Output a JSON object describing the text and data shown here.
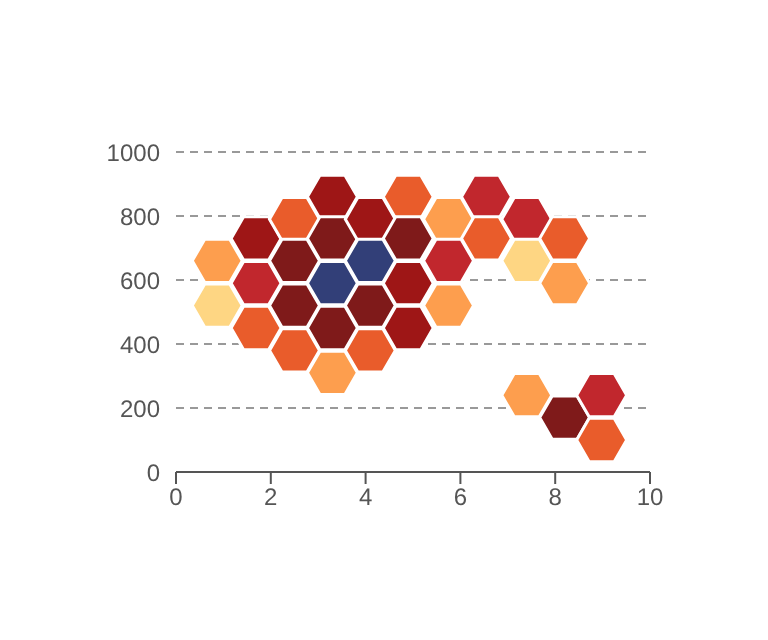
{
  "chart_data": {
    "type": "scatter",
    "x": [
      0.87,
      0.87,
      1.69,
      1.69,
      1.69,
      2.5,
      2.5,
      2.5,
      2.5,
      3.3,
      3.3,
      3.3,
      3.3,
      3.3,
      4.1,
      4.1,
      4.1,
      4.1,
      4.9,
      4.9,
      4.9,
      4.9,
      5.75,
      5.75,
      5.75,
      6.55,
      6.55,
      7.4,
      7.4,
      7.4,
      8.2,
      8.2,
      8.2,
      8.98,
      8.98
    ],
    "values": [
      660,
      520,
      730,
      590,
      450,
      790,
      660,
      520,
      380,
      860,
      730,
      590,
      450,
      310,
      790,
      660,
      520,
      380,
      860,
      730,
      590,
      450,
      790,
      660,
      520,
      860,
      730,
      790,
      660,
      240,
      730,
      590,
      170,
      240,
      100
    ],
    "colors": [
      "#fd9e4e",
      "#fed683",
      "#9e1616",
      "#c1272d",
      "#e95c2b",
      "#e95c2b",
      "#7f1a1a",
      "#7f1a1a",
      "#e95c2b",
      "#9e1616",
      "#7f1a1a",
      "#323f78",
      "#7f1a1a",
      "#fd9e4e",
      "#9e1616",
      "#323f78",
      "#7f1a1a",
      "#e95c2b",
      "#e95c2b",
      "#7f1a1a",
      "#9e1616",
      "#9e1616",
      "#fd9e4e",
      "#c1272d",
      "#fd9e4e",
      "#c1272d",
      "#e95c2b",
      "#c1272d",
      "#fed683",
      "#fd9e4e",
      "#e95c2b",
      "#fd9e4e",
      "#7f1a1a",
      "#c1272d",
      "#e95c2b"
    ],
    "xlim": [
      0,
      10
    ],
    "xticks": [
      0,
      2,
      4,
      6,
      8,
      10
    ],
    "ylim": [
      0,
      1000
    ],
    "yticks": [
      0,
      200,
      400,
      600,
      800,
      1000
    ],
    "grid": "y"
  }
}
